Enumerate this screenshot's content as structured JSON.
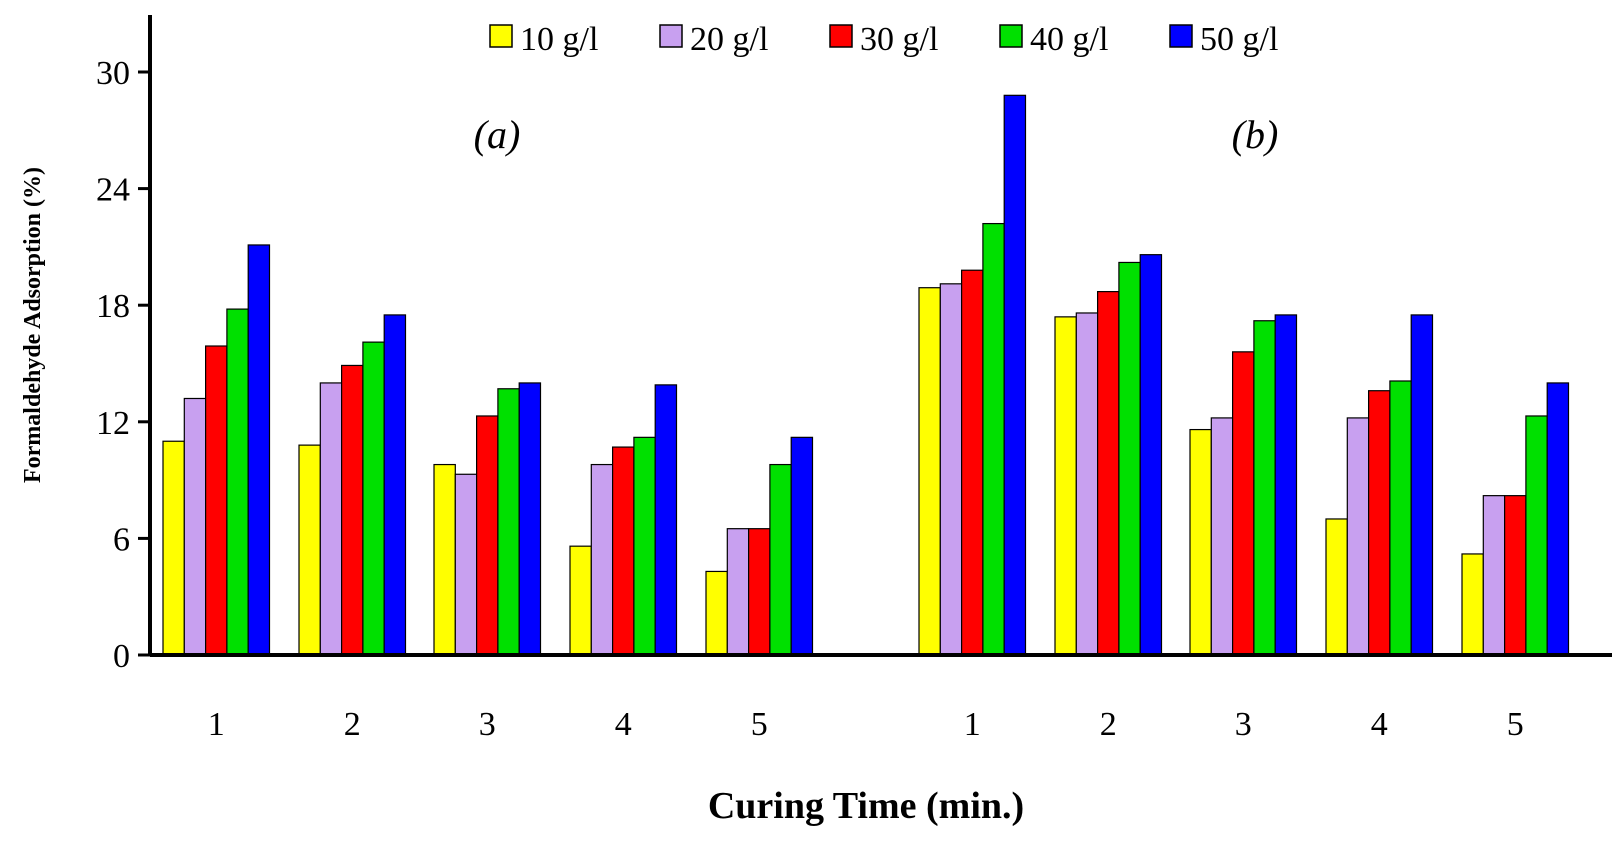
{
  "chart_data": {
    "type": "bar",
    "xlabel": "Curing Time (min.)",
    "ylabel": "Formaldehyde Adsorption (%)",
    "ylim": [
      0,
      30
    ],
    "yticks": [
      0,
      6,
      12,
      18,
      24,
      30
    ],
    "grid": false,
    "legend_position": "top",
    "panels": [
      {
        "label": "(a)",
        "categories": [
          "1",
          "2",
          "3",
          "4",
          "5"
        ],
        "series": [
          {
            "name": "10 g/l",
            "color": "#FFFF00",
            "values": [
              11.0,
              10.8,
              9.8,
              5.6,
              4.3
            ]
          },
          {
            "name": "20 g/l",
            "color": "#C8A0F0",
            "values": [
              13.2,
              14.0,
              9.3,
              9.8,
              6.5
            ]
          },
          {
            "name": "30 g/l",
            "color": "#FF0000",
            "values": [
              15.9,
              14.9,
              12.3,
              10.7,
              6.5
            ]
          },
          {
            "name": "40 g/l",
            "color": "#00E000",
            "values": [
              17.8,
              16.1,
              13.7,
              11.2,
              9.8
            ]
          },
          {
            "name": "50 g/l",
            "color": "#0000FF",
            "values": [
              21.1,
              17.5,
              14.0,
              13.9,
              11.2
            ]
          }
        ]
      },
      {
        "label": "(b)",
        "categories": [
          "1",
          "2",
          "3",
          "4",
          "5"
        ],
        "series": [
          {
            "name": "10 g/l",
            "color": "#FFFF00",
            "values": [
              18.9,
              17.4,
              11.6,
              7.0,
              5.2
            ]
          },
          {
            "name": "20 g/l",
            "color": "#C8A0F0",
            "values": [
              19.1,
              17.6,
              12.2,
              12.2,
              8.2
            ]
          },
          {
            "name": "30 g/l",
            "color": "#FF0000",
            "values": [
              19.8,
              18.7,
              15.6,
              13.6,
              8.2
            ]
          },
          {
            "name": "40 g/l",
            "color": "#00E000",
            "values": [
              22.2,
              20.2,
              17.2,
              14.1,
              12.3
            ]
          },
          {
            "name": "50 g/l",
            "color": "#0000FF",
            "values": [
              28.8,
              20.6,
              17.5,
              17.5,
              14.0
            ]
          }
        ]
      }
    ]
  }
}
